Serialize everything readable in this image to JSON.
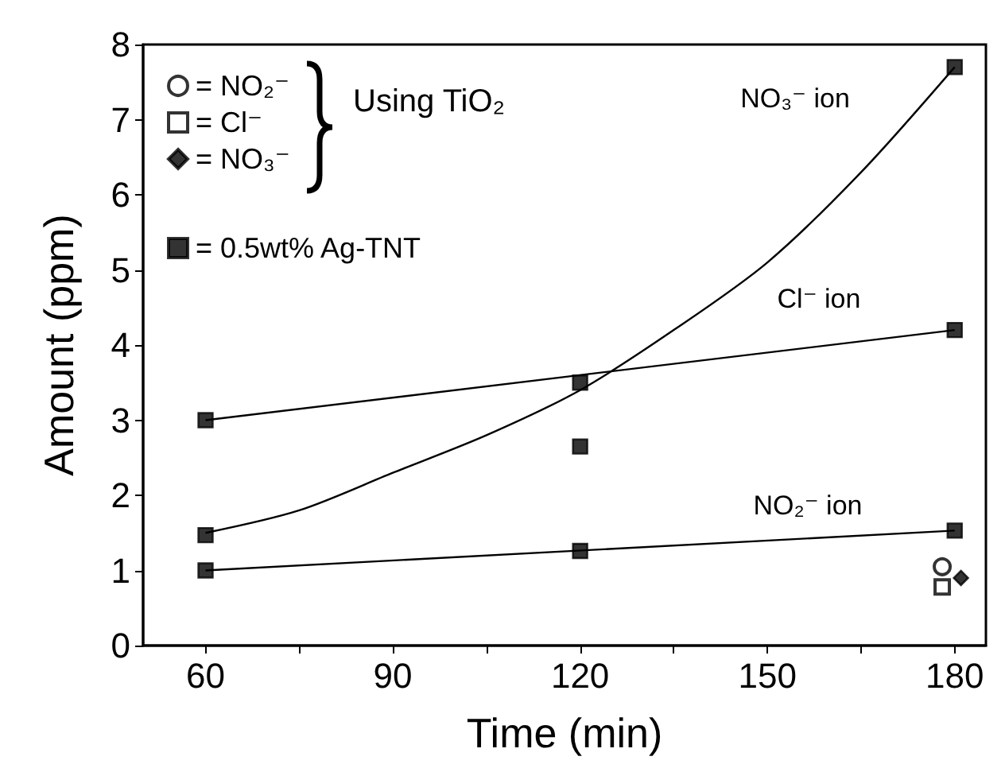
{
  "chart_data": {
    "type": "scatter",
    "xlabel": "Time (min)",
    "ylabel": "Amount (ppm)",
    "xlim": [
      50,
      185
    ],
    "xticks": [
      60,
      {
        "value": 75,
        "label": null
      },
      90,
      {
        "value": 105,
        "label": null
      },
      120,
      {
        "value": 135,
        "label": null
      },
      150,
      {
        "value": 165,
        "label": null
      },
      180
    ],
    "ylim": [
      0,
      8
    ],
    "yticks": [
      0,
      1,
      2,
      3,
      4,
      5,
      6,
      7,
      8
    ],
    "grid": false,
    "legend": "top left",
    "series": [
      {
        "name": "= NO₂⁻",
        "marker": "circle",
        "color": "#000000",
        "x": [
          178
        ],
        "values": [
          1.05
        ]
      },
      {
        "name": "= Cl⁻",
        "marker": "square",
        "color": "#000000",
        "x": [
          178
        ],
        "values": [
          0.78
        ]
      },
      {
        "name": "= NO₃⁻",
        "marker": "diamond",
        "color": "#000000",
        "x": [
          181
        ],
        "values": [
          0.9
        ]
      },
      {
        "name": "= 0.5wt% Ag-TNT",
        "marker": "square",
        "color": "#000000",
        "x": [
          60,
          120,
          180,
          60,
          120,
          180,
          60,
          120,
          180
        ],
        "values": [
          3.0,
          3.5,
          4.2,
          1.47,
          2.65,
          7.7,
          1.0,
          1.26,
          1.53
        ]
      },
      {
        "type": "line",
        "marker": "none",
        "line_style": "solid",
        "color": "#000000",
        "x": [
          60,
          180
        ],
        "values": [
          3.0,
          4.2
        ]
      },
      {
        "type": "line",
        "marker": "none",
        "line_style": "solid",
        "color": "#000000",
        "x": [
          60,
          180
        ],
        "values": [
          1.0,
          1.53
        ]
      },
      {
        "type": "line",
        "marker": "none",
        "line_style": "solid",
        "color": "#000000",
        "x": [
          60,
          75,
          90,
          105,
          120,
          135,
          150,
          165,
          180
        ],
        "values": [
          1.5,
          1.8,
          2.3,
          2.8,
          3.4,
          4.2,
          5.1,
          6.3,
          7.7
        ]
      }
    ],
    "annotations": [
      "Using TiO₂",
      "NO₃⁻ ion",
      "Cl⁻ ion",
      "NO₂⁻ ion"
    ]
  }
}
